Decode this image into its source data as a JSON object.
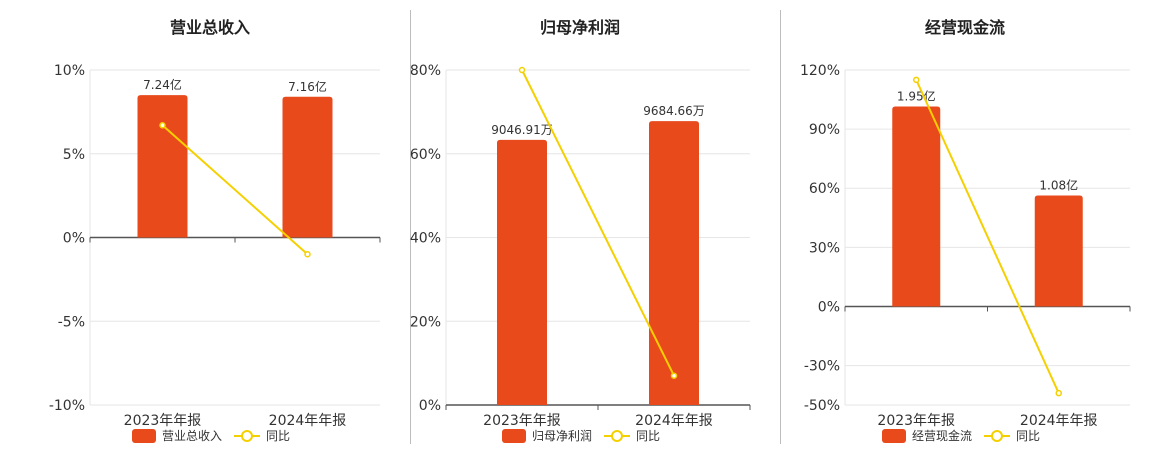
{
  "colors": {
    "bar": "#e84a1c",
    "line": "#f5d000",
    "grid": "#e6e6e6",
    "axis": "#555555",
    "text": "#333333"
  },
  "chart_data": [
    {
      "type": "bar",
      "title": "营业总收入",
      "categories": [
        "2023年年报",
        "2024年年报"
      ],
      "yAxis": {
        "ticks": [
          "10%",
          "5%",
          "0%",
          "-5%",
          "-10%"
        ],
        "min": -10,
        "max": 10
      },
      "series": [
        {
          "name": "营业总收入",
          "kind": "bar",
          "values": [
            8.5,
            8.4
          ],
          "labels": [
            "7.24亿",
            "7.16亿"
          ]
        },
        {
          "name": "同比",
          "kind": "line",
          "values": [
            6.7,
            -1.0
          ]
        }
      ]
    },
    {
      "type": "bar",
      "title": "归母净利润",
      "categories": [
        "2023年年报",
        "2024年年报"
      ],
      "yAxis": {
        "ticks": [
          "80%",
          "60%",
          "40%",
          "20%",
          "0%"
        ],
        "min": 0,
        "max": 80
      },
      "series": [
        {
          "name": "归母净利润",
          "kind": "bar",
          "values": [
            63.3,
            67.8
          ],
          "labels": [
            "9046.91万",
            "9684.66万"
          ]
        },
        {
          "name": "同比",
          "kind": "line",
          "values": [
            80.0,
            7.0
          ]
        }
      ]
    },
    {
      "type": "bar",
      "title": "经营现金流",
      "categories": [
        "2023年年报",
        "2024年年报"
      ],
      "yAxis": {
        "ticks": [
          "120%",
          "90%",
          "60%",
          "30%",
          "0%",
          "-30%",
          "-50%"
        ],
        "min": -50,
        "max": 120
      },
      "series": [
        {
          "name": "经营现金流",
          "kind": "bar",
          "values": [
            101.5,
            56.3
          ],
          "labels": [
            "1.95亿",
            "1.08亿"
          ]
        },
        {
          "name": "同比",
          "kind": "line",
          "values": [
            115.0,
            -44.0
          ]
        }
      ]
    }
  ]
}
